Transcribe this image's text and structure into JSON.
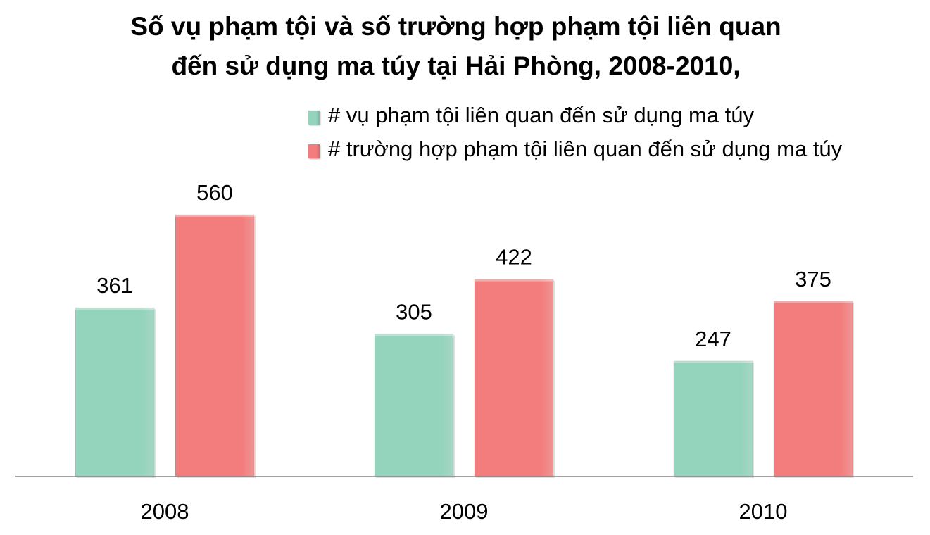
{
  "chart_data": {
    "type": "bar",
    "title_lines": [
      "Số vụ phạm tội và số trường hợp phạm tội liên quan",
      "đến sử dụng ma túy tại Hải Phòng, 2008-2010,"
    ],
    "categories": [
      "2008",
      "2009",
      "2010"
    ],
    "series": [
      {
        "name": "# vụ phạm tội liên quan đến sử dụng ma túy",
        "values": [
          361,
          305,
          247
        ],
        "color": "#94d3bc"
      },
      {
        "name": "# trường hợp phạm tội liên quan đến sử dụng ma túy",
        "values": [
          560,
          422,
          375
        ],
        "color": "#f27d7c"
      }
    ],
    "ylim": [
      0,
      560
    ],
    "grid": false,
    "legend_position": "top-right",
    "data_labels": true
  }
}
